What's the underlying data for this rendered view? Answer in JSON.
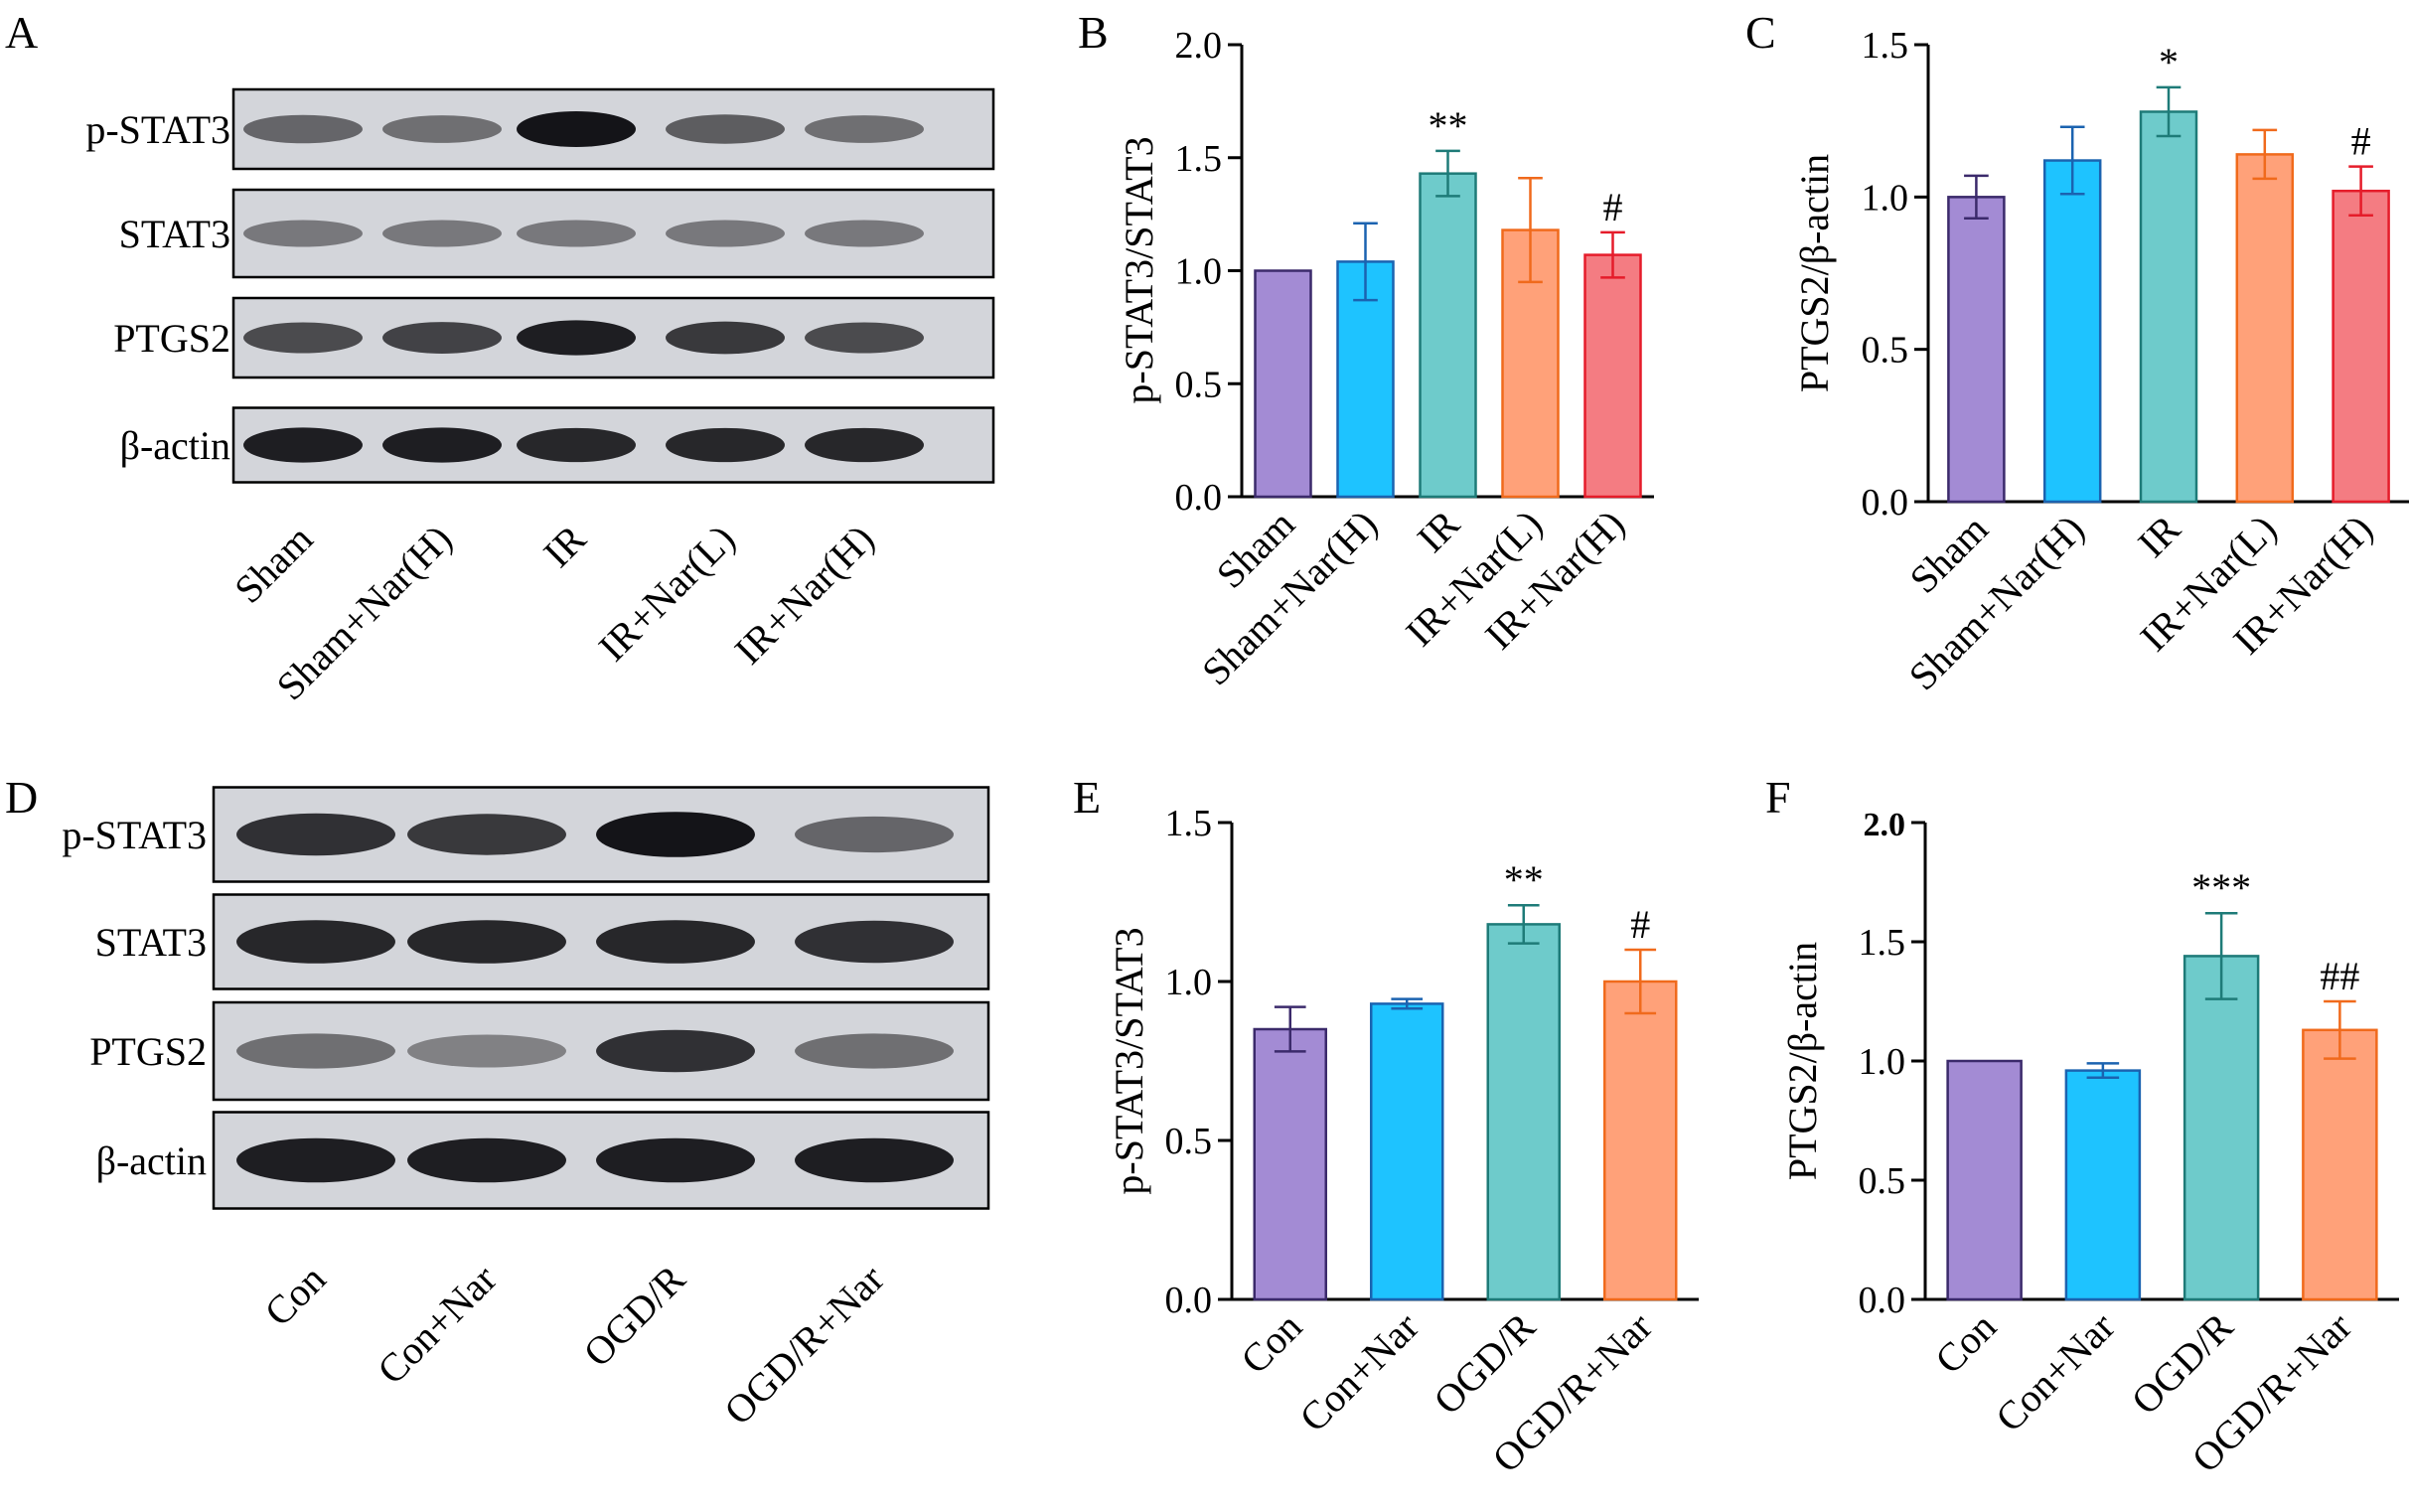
{
  "panels": {
    "A": {
      "letter": "A"
    },
    "B": {
      "letter": "B"
    },
    "C": {
      "letter": "C"
    },
    "D": {
      "letter": "D"
    },
    "E": {
      "letter": "E"
    },
    "F": {
      "letter": "F"
    }
  },
  "blots": [
    {
      "rows": [
        "p-STAT3",
        "STAT3",
        "PTGS2",
        "β-actin"
      ],
      "lanes": [
        "Sham",
        "Sham+Nar(H)",
        "IR",
        "IR+Nar(L)",
        "IR+Nar(H)"
      ],
      "intensity": [
        [
          0.55,
          0.5,
          1.0,
          0.6,
          0.5
        ],
        [
          0.45,
          0.45,
          0.45,
          0.45,
          0.45
        ],
        [
          0.7,
          0.75,
          0.95,
          0.8,
          0.7
        ],
        [
          0.95,
          0.95,
          0.9,
          0.9,
          0.9
        ]
      ]
    },
    {
      "rows": [
        "p-STAT3",
        "STAT3",
        "PTGS2",
        "β-actin"
      ],
      "lanes": [
        "Con",
        "Con+Nar",
        "OGD/R",
        "OGD/R+Nar"
      ],
      "intensity": [
        [
          0.85,
          0.8,
          1.0,
          0.55
        ],
        [
          0.9,
          0.9,
          0.9,
          0.85
        ],
        [
          0.5,
          0.4,
          0.85,
          0.5
        ],
        [
          0.95,
          0.95,
          0.95,
          0.95
        ]
      ]
    }
  ],
  "chart_data": [
    {
      "panel": "B",
      "type": "bar",
      "categories": [
        "Sham",
        "Sham+Nar(H)",
        "IR",
        "IR+Nar(L)",
        "IR+Nar(H)"
      ],
      "values": [
        1.0,
        1.04,
        1.43,
        1.18,
        1.07
      ],
      "errors": [
        0,
        0.17,
        0.1,
        0.23,
        0.1
      ],
      "annotations": [
        "",
        "",
        "**",
        "",
        "#"
      ],
      "ylabel": "p-STAT3/STAT3",
      "ylim": [
        0,
        2.0
      ],
      "yticks": [
        "0.0",
        "0.5",
        "1.0",
        "1.5",
        "2.0"
      ],
      "colors": [
        "#a38bd4",
        "#1ec3ff",
        "#6ecbcb",
        "#ffa179",
        "#f47c82"
      ],
      "edge_colors": [
        "#3b2a6b",
        "#1b63b0",
        "#1e7b78",
        "#f06a1c",
        "#e51c2a"
      ]
    },
    {
      "panel": "C",
      "type": "bar",
      "categories": [
        "Sham",
        "Sham+Nar(H)",
        "IR",
        "IR+Nar(L)",
        "IR+Nar(H)"
      ],
      "values": [
        1.0,
        1.12,
        1.28,
        1.14,
        1.02
      ],
      "errors": [
        0.07,
        0.11,
        0.08,
        0.08,
        0.08
      ],
      "annotations": [
        "",
        "",
        "*",
        "",
        "#"
      ],
      "ylabel": "PTGS2/β-actin",
      "ylim": [
        0,
        1.5
      ],
      "yticks": [
        "0.0",
        "0.5",
        "1.0",
        "1.5"
      ],
      "colors": [
        "#a38bd4",
        "#1ec3ff",
        "#6ecbcb",
        "#ffa179",
        "#f47c82"
      ],
      "edge_colors": [
        "#3b2a6b",
        "#1b63b0",
        "#1e7b78",
        "#f06a1c",
        "#e51c2a"
      ]
    },
    {
      "panel": "E",
      "type": "bar",
      "categories": [
        "Con",
        "Con+Nar",
        "OGD/R",
        "OGD/R+Nar"
      ],
      "values": [
        0.85,
        0.93,
        1.18,
        1.0
      ],
      "errors": [
        0.07,
        0.015,
        0.06,
        0.1
      ],
      "annotations": [
        "",
        "",
        "**",
        "#"
      ],
      "ylabel": "p-STAT3/STAT3",
      "ylim": [
        0,
        1.5
      ],
      "yticks": [
        "0.0",
        "0.5",
        "1.0",
        "1.5"
      ],
      "colors": [
        "#a38bd4",
        "#1ec3ff",
        "#6ecbcb",
        "#ffa179"
      ],
      "edge_colors": [
        "#3b2a6b",
        "#1b63b0",
        "#1e7b78",
        "#f06a1c"
      ]
    },
    {
      "panel": "F",
      "type": "bar",
      "categories": [
        "Con",
        "Con+Nar",
        "OGD/R",
        "OGD/R+Nar"
      ],
      "values": [
        1.0,
        0.96,
        1.44,
        1.13
      ],
      "errors": [
        0,
        0.03,
        0.18,
        0.12
      ],
      "annotations": [
        "",
        "",
        "***",
        "##"
      ],
      "ylabel": "PTGS2/β-actin",
      "ylim": [
        0,
        2.0
      ],
      "yticks": [
        "0.0",
        "0.5",
        "1.0",
        "1.5",
        "2.0"
      ],
      "bold_ticks": [
        "2.0"
      ],
      "colors": [
        "#a38bd4",
        "#1ec3ff",
        "#6ecbcb",
        "#ffa179"
      ],
      "edge_colors": [
        "#3b2a6b",
        "#1b63b0",
        "#1e7b78",
        "#f06a1c"
      ]
    }
  ]
}
